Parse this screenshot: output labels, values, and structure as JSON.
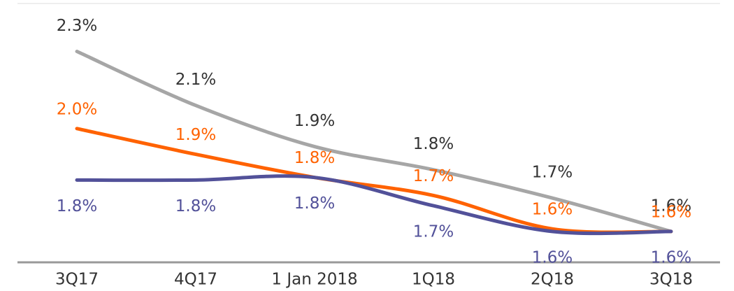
{
  "chart_data": {
    "type": "line",
    "categories": [
      "3Q17",
      "4Q17",
      "1 Jan 2018",
      "1Q18",
      "2Q18",
      "3Q18"
    ],
    "ylim": [
      1.48,
      2.5
    ],
    "series": [
      {
        "color": "#a6a6a6",
        "label_color": "#333333",
        "values": [
          2.3,
          2.09,
          1.93,
          1.84,
          1.73,
          1.6
        ],
        "value_labels": [
          "2.3%",
          "2.1%",
          "1.9%",
          "1.8%",
          "1.7%",
          "1.6%"
        ]
      },
      {
        "color": "#ff6200",
        "label_color": "#ff6200",
        "values": [
          2.0,
          1.9,
          1.81,
          1.74,
          1.61,
          1.6
        ],
        "value_labels": [
          "2.0%",
          "1.9%",
          "1.8%",
          "1.7%",
          "1.6%",
          "1.6%"
        ]
      },
      {
        "color": "#525199",
        "label_color": "#525199",
        "values": [
          1.8,
          1.8,
          1.81,
          1.7,
          1.6,
          1.6
        ],
        "value_labels": [
          "1.8%",
          "1.8%",
          "1.8%",
          "1.7%",
          "1.6%",
          "1.6%"
        ]
      }
    ]
  }
}
